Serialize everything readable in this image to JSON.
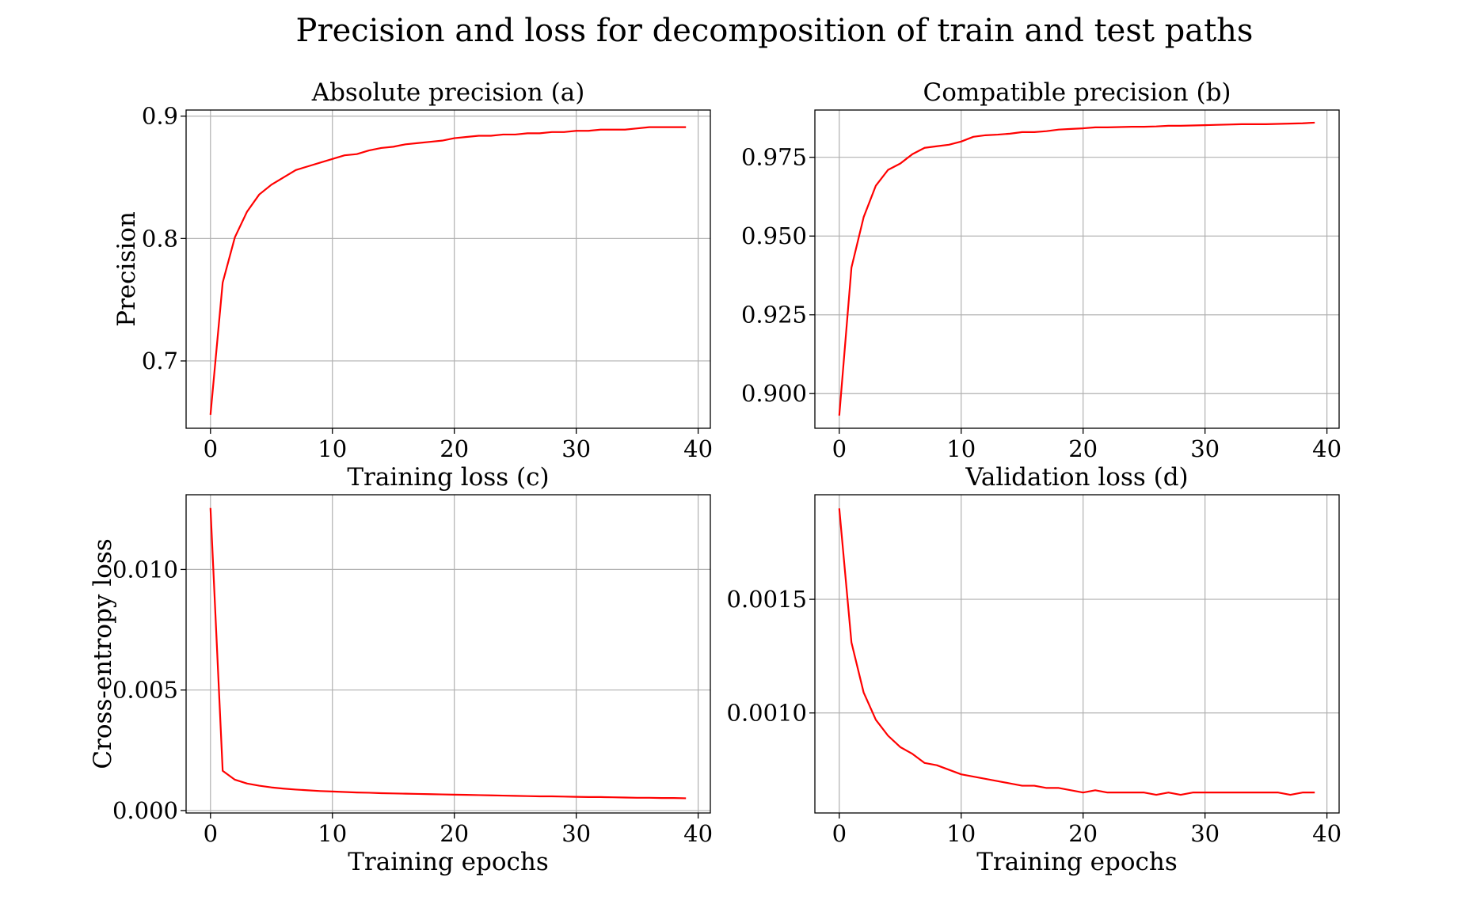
{
  "figure": {
    "title": "Precision and loss for decomposition of train and test paths",
    "line_color": "#ff0000",
    "grid": true
  },
  "chart_data": [
    {
      "id": "a",
      "type": "line",
      "title": "Absolute precision (a)",
      "xlabel": "",
      "ylabel": "Precision",
      "xlim": [
        -2,
        41
      ],
      "ylim": [
        0.645,
        0.905
      ],
      "xticks": [
        0,
        10,
        20,
        30,
        40
      ],
      "xtick_labels": [
        "0",
        "10",
        "20",
        "30",
        "40"
      ],
      "yticks": [
        0.7,
        0.8,
        0.9
      ],
      "ytick_labels": [
        "0.7",
        "0.8",
        "0.9"
      ],
      "series": [
        {
          "color": "#ff0000",
          "x": [
            0,
            1,
            2,
            3,
            4,
            5,
            6,
            7,
            8,
            9,
            10,
            11,
            12,
            13,
            14,
            15,
            16,
            17,
            18,
            19,
            20,
            21,
            22,
            23,
            24,
            25,
            26,
            27,
            28,
            29,
            30,
            31,
            32,
            33,
            34,
            35,
            36,
            37,
            38,
            39
          ],
          "y": [
            0.656,
            0.764,
            0.801,
            0.822,
            0.836,
            0.844,
            0.85,
            0.856,
            0.859,
            0.862,
            0.865,
            0.868,
            0.869,
            0.872,
            0.874,
            0.875,
            0.877,
            0.878,
            0.879,
            0.88,
            0.882,
            0.883,
            0.884,
            0.884,
            0.885,
            0.885,
            0.886,
            0.886,
            0.887,
            0.887,
            0.888,
            0.888,
            0.889,
            0.889,
            0.889,
            0.89,
            0.891,
            0.891,
            0.891,
            0.891
          ]
        }
      ]
    },
    {
      "id": "b",
      "type": "line",
      "title": "Compatible precision (b)",
      "xlabel": "",
      "ylabel": "",
      "xlim": [
        -2,
        41
      ],
      "ylim": [
        0.889,
        0.99
      ],
      "xticks": [
        0,
        10,
        20,
        30,
        40
      ],
      "xtick_labels": [
        "0",
        "10",
        "20",
        "30",
        "40"
      ],
      "yticks": [
        0.9,
        0.925,
        0.95,
        0.975
      ],
      "ytick_labels": [
        "0.900",
        "0.925",
        "0.950",
        "0.975"
      ],
      "series": [
        {
          "color": "#ff0000",
          "x": [
            0,
            1,
            2,
            3,
            4,
            5,
            6,
            7,
            8,
            9,
            10,
            11,
            12,
            13,
            14,
            15,
            16,
            17,
            18,
            19,
            20,
            21,
            22,
            23,
            24,
            25,
            26,
            27,
            28,
            29,
            30,
            31,
            32,
            33,
            34,
            35,
            36,
            37,
            38,
            39
          ],
          "y": [
            0.893,
            0.94,
            0.956,
            0.966,
            0.971,
            0.973,
            0.976,
            0.978,
            0.9785,
            0.979,
            0.98,
            0.9815,
            0.982,
            0.9822,
            0.9825,
            0.983,
            0.983,
            0.9833,
            0.9838,
            0.984,
            0.9842,
            0.9845,
            0.9845,
            0.9846,
            0.9847,
            0.9847,
            0.9848,
            0.985,
            0.985,
            0.9851,
            0.9852,
            0.9853,
            0.9854,
            0.9855,
            0.9855,
            0.9855,
            0.9856,
            0.9857,
            0.9858,
            0.986
          ]
        }
      ]
    },
    {
      "id": "c",
      "type": "line",
      "title": "Training loss (c)",
      "xlabel": "Training epochs",
      "ylabel": "Cross-entropy loss",
      "xlim": [
        -2,
        41
      ],
      "ylim": [
        -0.0001,
        0.0131
      ],
      "xticks": [
        0,
        10,
        20,
        30,
        40
      ],
      "xtick_labels": [
        "0",
        "10",
        "20",
        "30",
        "40"
      ],
      "yticks": [
        0.0,
        0.005,
        0.01
      ],
      "ytick_labels": [
        "0.000",
        "0.005",
        "0.010"
      ],
      "series": [
        {
          "color": "#ff0000",
          "x": [
            0,
            1,
            2,
            3,
            4,
            5,
            6,
            7,
            8,
            9,
            10,
            11,
            12,
            13,
            14,
            15,
            16,
            17,
            18,
            19,
            20,
            21,
            22,
            23,
            24,
            25,
            26,
            27,
            28,
            29,
            30,
            31,
            32,
            33,
            34,
            35,
            36,
            37,
            38,
            39
          ],
          "y": [
            0.01255,
            0.00165,
            0.00128,
            0.00112,
            0.00103,
            0.00096,
            0.00091,
            0.00087,
            0.00084,
            0.00081,
            0.00079,
            0.00077,
            0.00075,
            0.00074,
            0.00072,
            0.00071,
            0.0007,
            0.00069,
            0.00068,
            0.00067,
            0.00066,
            0.00065,
            0.00064,
            0.00063,
            0.00062,
            0.00061,
            0.0006,
            0.00059,
            0.00059,
            0.00058,
            0.00057,
            0.00056,
            0.00056,
            0.00055,
            0.00054,
            0.00053,
            0.00053,
            0.00052,
            0.00052,
            0.00051
          ]
        }
      ]
    },
    {
      "id": "d",
      "type": "line",
      "title": "Validation loss (d)",
      "xlabel": "Training epochs",
      "ylabel": "",
      "xlim": [
        -2,
        41
      ],
      "ylim": [
        0.00056,
        0.00196
      ],
      "xticks": [
        0,
        10,
        20,
        30,
        40
      ],
      "xtick_labels": [
        "0",
        "10",
        "20",
        "30",
        "40"
      ],
      "yticks": [
        0.001,
        0.0015
      ],
      "ytick_labels": [
        "0.0010",
        "0.0015"
      ],
      "series": [
        {
          "color": "#ff0000",
          "x": [
            0,
            1,
            2,
            3,
            4,
            5,
            6,
            7,
            8,
            9,
            10,
            11,
            12,
            13,
            14,
            15,
            16,
            17,
            18,
            19,
            20,
            21,
            22,
            23,
            24,
            25,
            26,
            27,
            28,
            29,
            30,
            31,
            32,
            33,
            34,
            35,
            36,
            37,
            38,
            39
          ],
          "y": [
            0.0019,
            0.00131,
            0.00109,
            0.00097,
            0.0009,
            0.00085,
            0.00082,
            0.00078,
            0.00077,
            0.00075,
            0.00073,
            0.00072,
            0.00071,
            0.0007,
            0.00069,
            0.00068,
            0.00068,
            0.00067,
            0.00067,
            0.00066,
            0.00065,
            0.00066,
            0.00065,
            0.00065,
            0.00065,
            0.00065,
            0.00064,
            0.00065,
            0.00064,
            0.00065,
            0.00065,
            0.00065,
            0.00065,
            0.00065,
            0.00065,
            0.00065,
            0.00065,
            0.00064,
            0.00065,
            0.00065
          ]
        }
      ]
    }
  ]
}
